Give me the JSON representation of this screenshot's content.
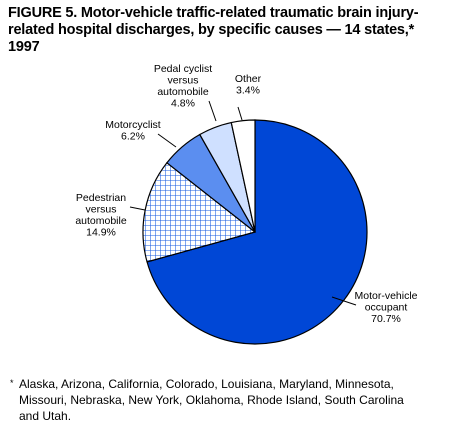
{
  "title": "FIGURE 5. Motor-vehicle traffic-related traumatic brain injury-\nrelated hospital discharges, by specific causes — 14 states,*\n1997",
  "footnote": {
    "mark": "*",
    "text": "Alaska, Arizona, California, Colorado, Louisiana, Maryland, Minnesota,\nMissouri, Nebraska, New York, Oklahoma, Rhode Island, South Carolina\nand Utah."
  },
  "colors": {
    "occupant": "#0047d6",
    "pedestrian_grid": "#1a5ce0",
    "motorcyclist": "#5b8ef0",
    "cyclist": "#cfe0ff",
    "other": "#ffffff"
  },
  "chart_data": {
    "type": "pie",
    "slices": [
      {
        "label": [
          "Motor-vehicle",
          "occupant"
        ],
        "value_label": "70.7%",
        "value": 70.7
      },
      {
        "label": [
          "Pedestrian",
          "versus",
          "automobile"
        ],
        "value_label": "14.9%",
        "value": 14.9
      },
      {
        "label": [
          "Motorcyclist"
        ],
        "value_label": "6.2%",
        "value": 6.2
      },
      {
        "label": [
          "Pedal cyclist",
          "versus",
          "automobile"
        ],
        "value_label": "4.8%",
        "value": 4.8
      },
      {
        "label": [
          "Other"
        ],
        "value_label": "3.4%",
        "value": 3.4
      }
    ]
  }
}
